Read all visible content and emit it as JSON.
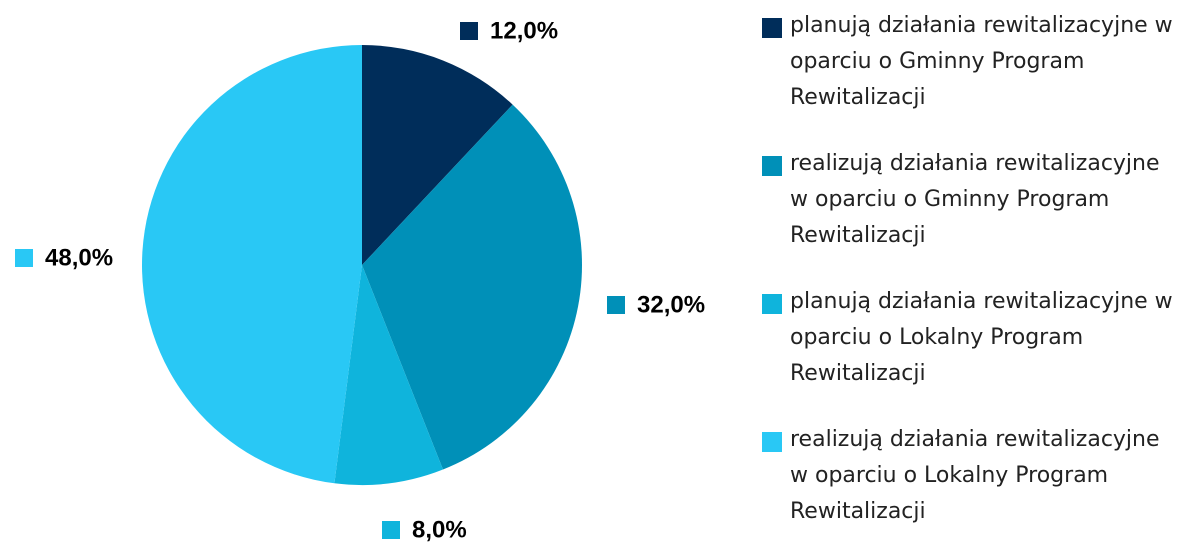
{
  "chart_data": {
    "type": "pie",
    "categories": [
      "planują działania rewitalizacyjne w oparciu o Gminny Program Rewitalizacji",
      "realizują działania rewitalizacyjne w oparciu o Gminny Program Rewitalizacji",
      "planują działania rewitalizacyjne w oparciu o Lokalny Program Rewitalizacji",
      "realizują działania rewitalizacyjne w oparciu o Lokalny Program Rewitalizacji"
    ],
    "values": [
      12,
      32,
      8,
      48
    ],
    "value_labels": [
      "12,0%",
      "32,0%",
      "8,0%",
      "48,0%"
    ],
    "colors": [
      "#002d5a",
      "#0090b8",
      "#0fb4dc",
      "#29c8f5"
    ],
    "legend": "right"
  }
}
